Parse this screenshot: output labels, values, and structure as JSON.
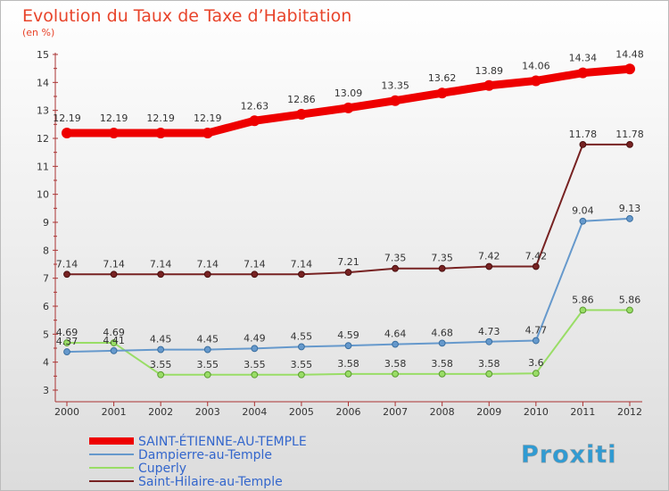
{
  "chart_data": {
    "type": "line",
    "title": "Evolution du Taux de Taxe d’Habitation",
    "subtitle": "(en %)",
    "x": [
      "2000",
      "2001",
      "2002",
      "2003",
      "2004",
      "2005",
      "2006",
      "2007",
      "2008",
      "2009",
      "2010",
      "2011",
      "2012"
    ],
    "ylim": [
      3,
      15
    ],
    "yticks": [
      "3",
      "4",
      "5",
      "6",
      "7",
      "8",
      "9",
      "10",
      "11",
      "12",
      "13",
      "14",
      "15"
    ],
    "grid": false,
    "legend_position": "bottom-left",
    "series": [
      {
        "name": "SAINT-ÉTIENNE-AU-TEMPLE",
        "color": "#EE0000",
        "values": [
          12.19,
          12.19,
          12.19,
          12.19,
          12.63,
          12.86,
          13.09,
          13.35,
          13.62,
          13.89,
          14.06,
          14.34,
          14.48
        ],
        "labels": [
          "12.19",
          "12.19",
          "12.19",
          "12.19",
          "12.63",
          "12.86",
          "13.09",
          "13.35",
          "13.62",
          "13.89",
          "14.06",
          "14.34",
          "14.48"
        ]
      },
      {
        "name": "Dampierre-au-Temple",
        "color": "#6699CC",
        "values": [
          4.37,
          4.41,
          4.45,
          4.45,
          4.49,
          4.55,
          4.59,
          4.64,
          4.68,
          4.73,
          4.77,
          9.04,
          9.13
        ],
        "labels": [
          "4.37",
          "4.41",
          "4.45",
          "4.45",
          "4.49",
          "4.55",
          "4.59",
          "4.64",
          "4.68",
          "4.73",
          "4.77",
          "9.04",
          "9.13"
        ]
      },
      {
        "name": "Cuperly",
        "color": "#99DD66",
        "values": [
          4.69,
          4.69,
          3.55,
          3.55,
          3.55,
          3.55,
          3.58,
          3.58,
          3.58,
          3.58,
          3.6,
          5.86,
          5.86
        ],
        "labels": [
          "4.69",
          "4.69",
          "3.55",
          "3.55",
          "3.55",
          "3.55",
          "3.58",
          "3.58",
          "3.58",
          "3.58",
          "3.6",
          "5.86",
          "5.86"
        ]
      },
      {
        "name": "Saint-Hilaire-au-Temple",
        "color": "#772222",
        "values": [
          7.14,
          7.14,
          7.14,
          7.14,
          7.14,
          7.14,
          7.21,
          7.35,
          7.35,
          7.42,
          7.42,
          11.78,
          11.78
        ],
        "labels": [
          "7.14",
          "7.14",
          "7.14",
          "7.14",
          "7.14",
          "7.14",
          "7.21",
          "7.35",
          "7.35",
          "7.42",
          "7.42",
          "11.78",
          "11.78"
        ]
      }
    ]
  },
  "logo_text": "Proxiti"
}
